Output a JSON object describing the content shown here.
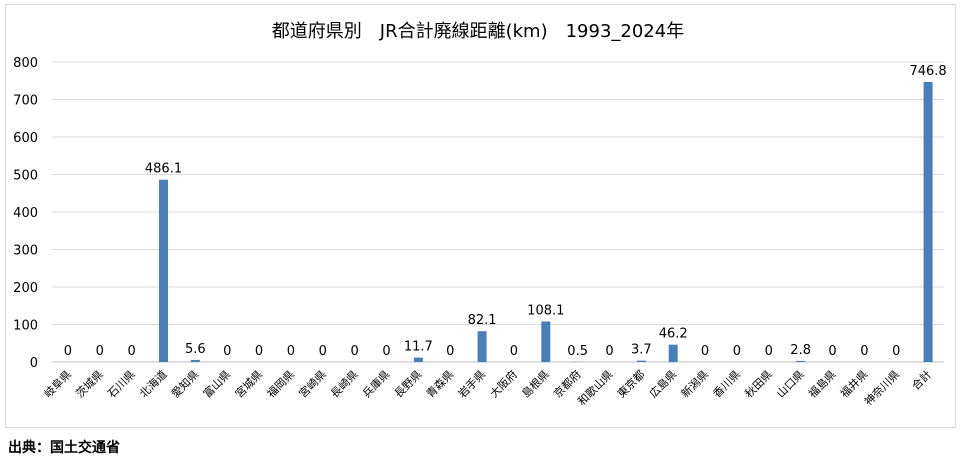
{
  "source_note": "出典：国土交通省",
  "chart_data": {
    "type": "bar",
    "title": "都道府県別　JR合計廃線距離(km)　1993_2024年",
    "xlabel": "",
    "ylabel": "",
    "ylim": [
      0,
      800
    ],
    "yticks": [
      0,
      100,
      200,
      300,
      400,
      500,
      600,
      700,
      800
    ],
    "grid": true,
    "legend": "none",
    "bar_color": "#4a7ebb",
    "categories": [
      "岐阜県",
      "茨城県",
      "石川県",
      "北海道",
      "愛知県",
      "富山県",
      "宮城県",
      "福岡県",
      "宮崎県",
      "長崎県",
      "兵庫県",
      "長野県",
      "青森県",
      "岩手県",
      "大阪府",
      "島根県",
      "京都府",
      "和歌山県",
      "東京都",
      "広島県",
      "新潟県",
      "香川県",
      "秋田県",
      "山口県",
      "福島県",
      "福井県",
      "神奈川県",
      "合計"
    ],
    "values": [
      0,
      0,
      0,
      486.1,
      5.6,
      0,
      0,
      0,
      0,
      0,
      0,
      11.7,
      0,
      82.1,
      0,
      108.1,
      0.5,
      0,
      3.7,
      46.2,
      0,
      0,
      0,
      2.8,
      0,
      0,
      0,
      746.8
    ],
    "data_labels": [
      "0",
      "0",
      "0",
      "486.1",
      "5.6",
      "0",
      "0",
      "0",
      "0",
      "0",
      "0",
      "11.7",
      "0",
      "82.1",
      "0",
      "108.1",
      "0.5",
      "0",
      "3.7",
      "46.2",
      "0",
      "0",
      "0",
      "2.8",
      "0",
      "0",
      "0",
      "746.8"
    ]
  }
}
